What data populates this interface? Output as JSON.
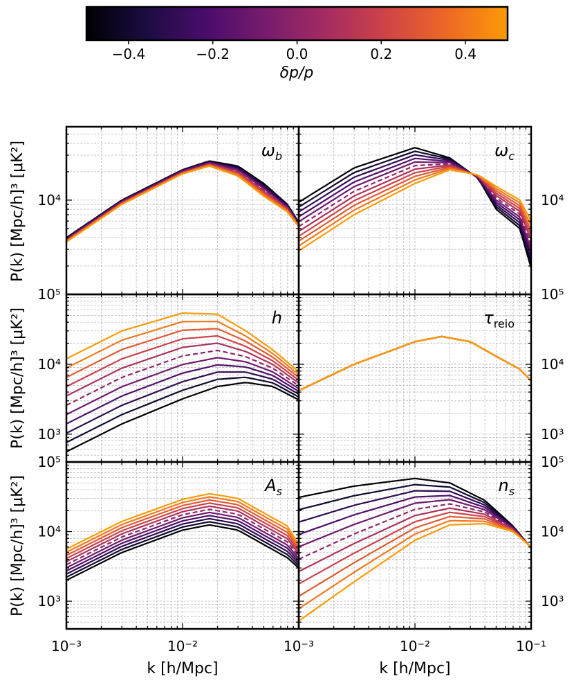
{
  "colorbar": {
    "label": "δp/p",
    "min": -0.5,
    "max": 0.5,
    "ticks": [
      -0.4,
      -0.2,
      0.0,
      0.2,
      0.4
    ],
    "tick_labels": [
      "−0.4",
      "−0.2",
      "0.0",
      "0.2",
      "0.4"
    ],
    "colormap": "inferno",
    "stops": [
      "#000004",
      "#1b0c41",
      "#4a0c6b",
      "#781c6d",
      "#a52c60",
      "#cf4446",
      "#ed6925",
      "#fb9b06"
    ]
  },
  "y_axis_title": "P(k) [Mpc/h]³ [μK²]",
  "x_axis_title": "k [h/Mpc]",
  "x_tick_labels": [
    "10⁻³",
    "10⁻²",
    "10⁻¹"
  ],
  "chart_data": [
    {
      "type": "line",
      "panel": "omega_b",
      "label": "ω",
      "label_sub": "b",
      "xscale": "log",
      "yscale": "log",
      "xlim": [
        0.001,
        0.1
      ],
      "ylim": [
        1000,
        60000
      ],
      "ytick_labels_left": [
        "10⁴"
      ],
      "ytick_labels_right": [],
      "grid": true,
      "x": [
        0.001,
        0.003,
        0.01,
        0.017,
        0.03,
        0.05,
        0.08,
        0.1
      ],
      "series_first": [
        4000,
        10000,
        21000,
        26000,
        23000,
        15000,
        9000,
        5800
      ],
      "series_last": [
        3600,
        9000,
        19000,
        23000,
        18000,
        11000,
        7500,
        5200
      ],
      "n_series": 11
    },
    {
      "type": "line",
      "panel": "omega_c",
      "label": "ω",
      "label_sub": "c",
      "xscale": "log",
      "yscale": "log",
      "xlim": [
        0.001,
        0.1
      ],
      "ylim": [
        1000,
        60000
      ],
      "ytick_labels_left": [],
      "ytick_labels_right": [
        "10⁴"
      ],
      "grid": true,
      "x": [
        0.001,
        0.003,
        0.01,
        0.02,
        0.035,
        0.05,
        0.08,
        0.1
      ],
      "series_first": [
        9500,
        22000,
        36000,
        28000,
        17000,
        8000,
        5000,
        1900
      ],
      "series_last": [
        2900,
        7000,
        15000,
        21000,
        18500,
        14000,
        10000,
        6000
      ],
      "n_series": 11
    },
    {
      "type": "line",
      "panel": "h",
      "label": "h",
      "label_sub": "",
      "xscale": "log",
      "yscale": "log",
      "xlim": [
        0.001,
        0.1
      ],
      "ylim": [
        400,
        100000
      ],
      "ytick_labels_left": [
        "10⁵",
        "10⁴",
        "10³"
      ],
      "ytick_labels_right": [],
      "grid": true,
      "x": [
        0.001,
        0.003,
        0.01,
        0.02,
        0.035,
        0.06,
        0.1
      ],
      "series_first": [
        560,
        1400,
        3200,
        4800,
        5500,
        4800,
        3100
      ],
      "series_last": [
        12000,
        30000,
        54000,
        52000,
        30000,
        16000,
        7800
      ],
      "n_series": 11
    },
    {
      "type": "line",
      "panel": "tau_reio",
      "label": "τ",
      "label_sub": "reio",
      "xscale": "log",
      "yscale": "log",
      "xlim": [
        0.001,
        0.1
      ],
      "ylim": [
        400,
        100000
      ],
      "ytick_labels_left": [],
      "ytick_labels_right": [
        "10⁵",
        "10⁴",
        "10³"
      ],
      "grid": true,
      "x": [
        0.001,
        0.003,
        0.01,
        0.017,
        0.03,
        0.05,
        0.08,
        0.1
      ],
      "series_first": [
        4200,
        10000,
        21000,
        25000,
        21000,
        13000,
        8500,
        5800
      ],
      "series_last": [
        4200,
        10000,
        21000,
        25000,
        21000,
        13000,
        8500,
        5800
      ],
      "n_series": 11
    },
    {
      "type": "line",
      "panel": "A_s",
      "label": "A",
      "label_sub": "s",
      "xscale": "log",
      "yscale": "log",
      "xlim": [
        0.001,
        0.1
      ],
      "ylim": [
        400,
        100000
      ],
      "ytick_labels_left": [
        "10⁵",
        "10⁴",
        "10³"
      ],
      "ytick_labels_right": [],
      "grid": true,
      "x": [
        0.001,
        0.003,
        0.01,
        0.017,
        0.03,
        0.05,
        0.08,
        0.1
      ],
      "series_first": [
        2000,
        5000,
        10500,
        12500,
        10500,
        6500,
        4200,
        3000
      ],
      "series_last": [
        5600,
        14000,
        29000,
        35000,
        30000,
        18500,
        12000,
        6500
      ],
      "n_series": 11
    },
    {
      "type": "line",
      "panel": "n_s",
      "label": "n",
      "label_sub": "s",
      "xscale": "log",
      "yscale": "log",
      "xlim": [
        0.001,
        0.1
      ],
      "ylim": [
        400,
        100000
      ],
      "ytick_labels_left": [],
      "ytick_labels_right": [
        "10⁵",
        "10⁴",
        "10³"
      ],
      "grid": true,
      "x": [
        0.001,
        0.003,
        0.01,
        0.02,
        0.04,
        0.07,
        0.1
      ],
      "series_first": [
        31000,
        45000,
        58000,
        50000,
        28000,
        12000,
        5800
      ],
      "series_last": [
        520,
        1900,
        7500,
        12500,
        13000,
        10000,
        6000
      ],
      "n_series": 11
    }
  ]
}
